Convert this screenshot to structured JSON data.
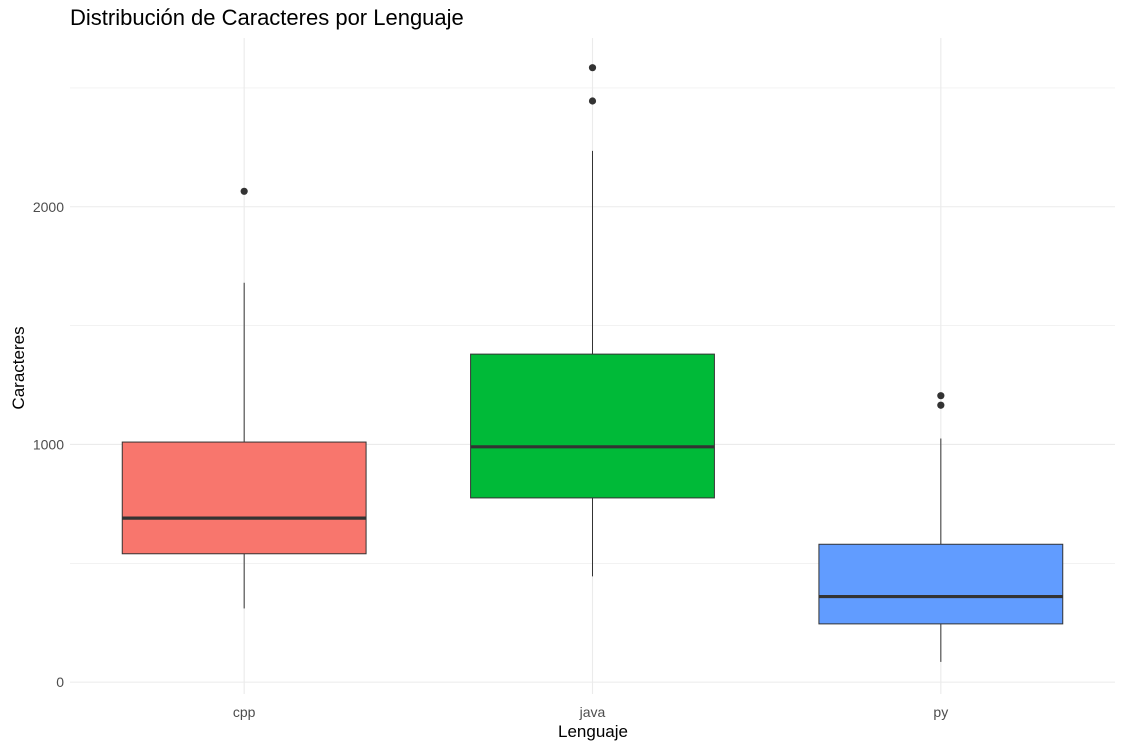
{
  "chart_data": {
    "type": "boxplot",
    "title": "Distribución de Caracteres por Lenguaje",
    "xlabel": "Lenguaje",
    "ylabel": "Caracteres",
    "categories": [
      "cpp",
      "java",
      "py"
    ],
    "ylim": [
      -50,
      2710
    ],
    "yticks": [
      0,
      1000,
      2000
    ],
    "grid": true,
    "legend": "none",
    "colors": [
      "#F8766D",
      "#00BA38",
      "#619CFF"
    ],
    "boxes": [
      {
        "category": "cpp",
        "whisker_low": 310,
        "q1": 540,
        "median": 690,
        "q3": 1010,
        "whisker_high": 1680,
        "outliers": [
          2065
        ]
      },
      {
        "category": "java",
        "whisker_low": 445,
        "q1": 775,
        "median": 990,
        "q3": 1380,
        "whisker_high": 2235,
        "outliers": [
          2445,
          2585
        ]
      },
      {
        "category": "py",
        "whisker_low": 85,
        "q1": 245,
        "median": 360,
        "q3": 580,
        "whisker_high": 1025,
        "outliers": [
          1165,
          1205
        ]
      }
    ]
  }
}
